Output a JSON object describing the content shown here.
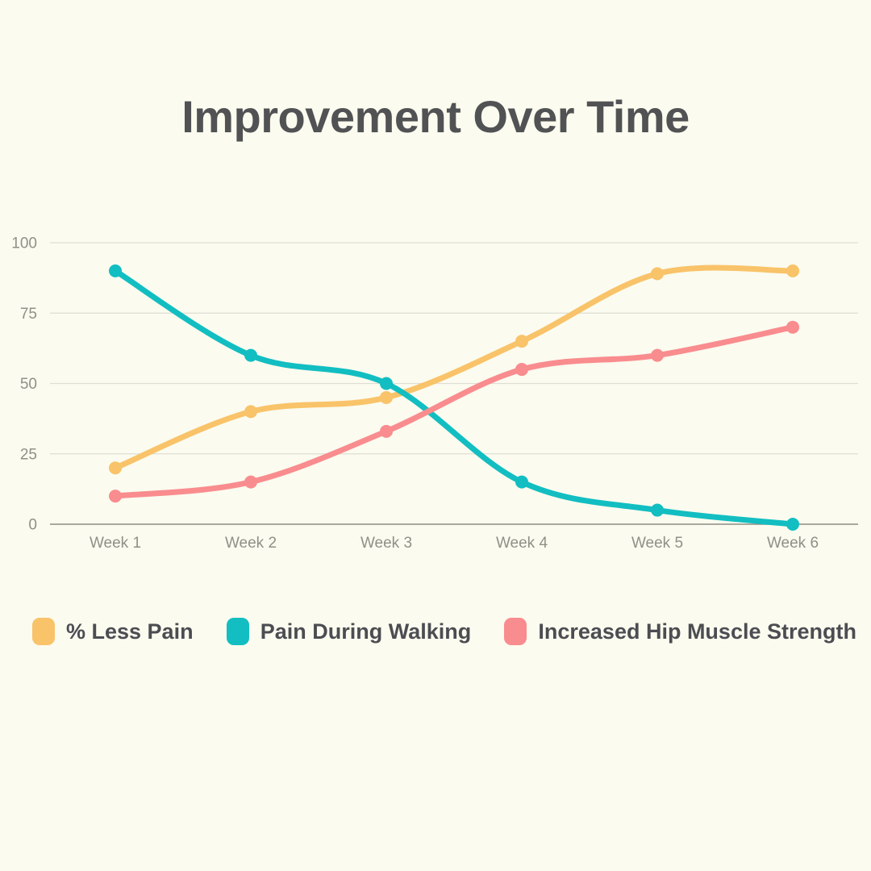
{
  "title": "Improvement Over Time",
  "colors": {
    "background": "#FBFBEF",
    "title_text": "#515254",
    "legend_text": "#4C4D52",
    "axis_label": "#8F9088",
    "gridline": "#DEDED5",
    "axis_line": "#8C8C84"
  },
  "chart_data": {
    "type": "line",
    "title": "Improvement Over Time",
    "categories": [
      "Week 1",
      "Week 2",
      "Week 3",
      "Week 4",
      "Week 5",
      "Week 6"
    ],
    "series": [
      {
        "name": "% Less Pain",
        "color": "#F9C369",
        "values": [
          20,
          40,
          45,
          65,
          89,
          90
        ]
      },
      {
        "name": "Pain During Walking",
        "color": "#12BEC1",
        "values": [
          90,
          60,
          50,
          15,
          5,
          0
        ]
      },
      {
        "name": "Increased Hip Muscle Strength",
        "color": "#F98C8E",
        "values": [
          10,
          15,
          33,
          55,
          60,
          70
        ]
      }
    ],
    "xlabel": "",
    "ylabel": "",
    "ylim": [
      0,
      100
    ],
    "yticks": [
      0,
      25,
      50,
      75,
      100
    ],
    "grid": true,
    "line_smoothing": true,
    "legend_position": "bottom"
  }
}
